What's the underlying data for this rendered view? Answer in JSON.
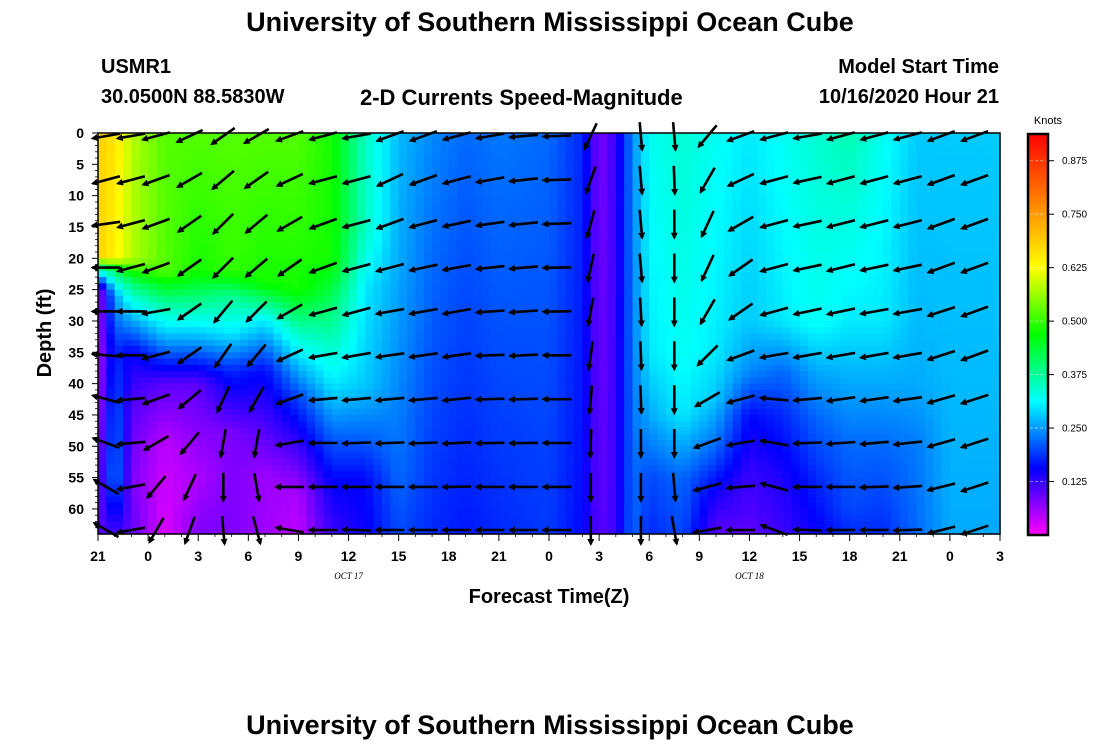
{
  "page": {
    "top_title": "University of Southern Mississippi Ocean Cube",
    "bottom_title": "University of Southern Mississippi Ocean Cube",
    "station_id": "USMR1",
    "station_coords": "30.0500N 88.5830W",
    "plot_title": "2-D Currents Speed-Magnitude",
    "model_start_label": "Model Start Time",
    "model_start_value": "10/16/2020 Hour 21"
  },
  "chart_data": {
    "type": "heatmap",
    "title": "2-D Currents Speed-Magnitude",
    "xlabel": "Forecast Time(Z)",
    "ylabel": "Depth (ft)",
    "x_tick_labels": [
      "21",
      "0",
      "3",
      "6",
      "9",
      "12",
      "15",
      "18",
      "21",
      "0",
      "3",
      "6",
      "9",
      "12",
      "15",
      "18",
      "21",
      "0",
      "3"
    ],
    "date_labels": [
      {
        "label": "OCT 17",
        "hour_index": 5
      },
      {
        "label": "OCT 18",
        "hour_index": 13
      }
    ],
    "ylim": [
      0,
      64
    ],
    "y_ticks": [
      0,
      5,
      10,
      15,
      20,
      25,
      30,
      35,
      40,
      45,
      50,
      55,
      60
    ],
    "colorbar": {
      "unit": "Knots",
      "min": 0,
      "max": 0.9375,
      "ticks": [
        0.125,
        0.25,
        0.375,
        0.5,
        0.625,
        0.75,
        0.875
      ],
      "tick_labels": [
        "0.125",
        "0.250",
        "0.375",
        "0.500",
        "0.625",
        "0.750",
        "0.875"
      ],
      "colors": [
        "#ff00ff",
        "#8000ff",
        "#0000ff",
        "#0080ff",
        "#00ffff",
        "#00ff80",
        "#00ff00",
        "#80ff00",
        "#ffff00",
        "#ffc000",
        "#ff8000",
        "#ff4000",
        "#ff0000"
      ]
    },
    "grid": false,
    "legend_position": "right",
    "vector_depths": [
      0,
      7,
      14,
      21,
      28,
      35,
      42,
      49,
      56,
      63
    ],
    "speed_profiles": [
      {
        "t": 0,
        "d": [
          0,
          0.68,
          20,
          0.68,
          21,
          0.42,
          25,
          0.05,
          45,
          0.05,
          64,
          0.1
        ]
      },
      {
        "t": 1,
        "d": [
          0,
          0.66,
          20,
          0.64,
          22,
          0.4,
          26,
          0.25,
          35,
          0.18,
          45,
          0.22,
          55,
          0.24,
          64,
          0.12
        ]
      },
      {
        "t": 2,
        "d": [
          0,
          0.58,
          20,
          0.58,
          24,
          0.4,
          27,
          0.32,
          35,
          0.15,
          45,
          0.1,
          55,
          0.08,
          64,
          0.1
        ]
      },
      {
        "t": 4,
        "d": [
          0,
          0.52,
          22,
          0.52,
          27,
          0.38,
          32,
          0.28,
          40,
          0.1,
          50,
          0.04,
          64,
          0.02
        ]
      },
      {
        "t": 6,
        "d": [
          0,
          0.52,
          22,
          0.48,
          28,
          0.36,
          33,
          0.26,
          40,
          0.1,
          55,
          0.05,
          64,
          0.08
        ]
      },
      {
        "t": 8,
        "d": [
          0,
          0.52,
          22,
          0.5,
          26,
          0.38,
          32,
          0.3,
          38,
          0.18,
          48,
          0.08,
          64,
          0.08
        ]
      },
      {
        "t": 10,
        "d": [
          0,
          0.52,
          24,
          0.48,
          30,
          0.3,
          38,
          0.16,
          45,
          0.12,
          55,
          0.06,
          64,
          0.06
        ]
      },
      {
        "t": 12,
        "d": [
          0,
          0.52,
          25,
          0.48,
          32,
          0.35,
          42,
          0.2,
          50,
          0.12,
          58,
          0.05,
          64,
          0.04
        ]
      },
      {
        "t": 14,
        "d": [
          0,
          0.48,
          20,
          0.48,
          28,
          0.4,
          40,
          0.3,
          48,
          0.22,
          55,
          0.16,
          64,
          0.12
        ]
      },
      {
        "t": 16,
        "d": [
          0,
          0.35,
          15,
          0.35,
          25,
          0.3,
          40,
          0.28,
          48,
          0.22,
          55,
          0.16,
          64,
          0.15
        ]
      },
      {
        "t": 18,
        "d": [
          0,
          0.27,
          20,
          0.26,
          40,
          0.24,
          55,
          0.22,
          64,
          0.2
        ]
      },
      {
        "t": 20,
        "d": [
          0,
          0.24,
          64,
          0.18
        ]
      },
      {
        "t": 22,
        "d": [
          0,
          0.22,
          64,
          0.17
        ]
      },
      {
        "t": 24,
        "d": [
          0,
          0.23,
          64,
          0.18
        ]
      },
      {
        "t": 27,
        "d": [
          0,
          0.22,
          64,
          0.19
        ]
      },
      {
        "t": 29,
        "d": [
          0,
          0.18,
          64,
          0.16
        ]
      },
      {
        "t": 30,
        "d": [
          0,
          0.08,
          64,
          0.1
        ]
      },
      {
        "t": 31,
        "d": [
          0,
          0.12,
          64,
          0.12
        ]
      },
      {
        "t": 32,
        "d": [
          0,
          0.24,
          64,
          0.22
        ]
      },
      {
        "t": 33,
        "d": [
          0,
          0.32,
          35,
          0.3,
          45,
          0.26,
          55,
          0.2,
          64,
          0.18
        ]
      },
      {
        "t": 35,
        "d": [
          0,
          0.34,
          35,
          0.32,
          45,
          0.3,
          55,
          0.22,
          64,
          0.2
        ]
      },
      {
        "t": 37,
        "d": [
          0,
          0.32,
          35,
          0.3,
          42,
          0.28,
          50,
          0.22,
          58,
          0.14,
          64,
          0.1
        ]
      },
      {
        "t": 39,
        "d": [
          0,
          0.3,
          30,
          0.28,
          38,
          0.24,
          45,
          0.16,
          55,
          0.12,
          64,
          0.1
        ]
      },
      {
        "t": 41,
        "d": [
          0,
          0.32,
          30,
          0.3,
          38,
          0.22,
          45,
          0.18,
          55,
          0.14,
          64,
          0.12
        ]
      },
      {
        "t": 43,
        "d": [
          0,
          0.34,
          30,
          0.32,
          38,
          0.26,
          45,
          0.22,
          55,
          0.18,
          64,
          0.15
        ]
      },
      {
        "t": 45,
        "d": [
          0,
          0.36,
          30,
          0.3,
          40,
          0.26,
          50,
          0.22,
          60,
          0.2,
          64,
          0.18
        ]
      },
      {
        "t": 47,
        "d": [
          0,
          0.32,
          30,
          0.3,
          40,
          0.26,
          50,
          0.22,
          64,
          0.18
        ]
      },
      {
        "t": 49,
        "d": [
          0,
          0.28,
          30,
          0.27,
          40,
          0.26,
          50,
          0.23,
          64,
          0.22
        ]
      },
      {
        "t": 51,
        "d": [
          0,
          0.28,
          40,
          0.27,
          64,
          0.26
        ]
      },
      {
        "t": 54,
        "d": [
          0,
          0.28,
          40,
          0.27,
          64,
          0.26
        ]
      }
    ],
    "vectors": [
      {
        "t": 0.5,
        "dirs": [
          190,
          195,
          188,
          180,
          180,
          175,
          165,
          160,
          150,
          150
        ]
      },
      {
        "t": 2,
        "dirs": [
          190,
          195,
          195,
          195,
          180,
          180,
          185,
          185,
          190,
          190
        ]
      },
      {
        "t": 3.5,
        "dirs": [
          195,
          200,
          200,
          200,
          190,
          195,
          200,
          210,
          230,
          240
        ]
      },
      {
        "t": 5.5,
        "dirs": [
          205,
          210,
          215,
          215,
          215,
          215,
          220,
          230,
          245,
          250
        ]
      },
      {
        "t": 7.5,
        "dirs": [
          215,
          220,
          225,
          225,
          230,
          235,
          245,
          260,
          270,
          275
        ]
      },
      {
        "t": 9.5,
        "dirs": [
          210,
          215,
          220,
          220,
          225,
          230,
          240,
          260,
          280,
          285
        ]
      },
      {
        "t": 11.5,
        "dirs": [
          200,
          205,
          210,
          215,
          210,
          205,
          200,
          190,
          180,
          170
        ]
      },
      {
        "t": 13.5,
        "dirs": [
          195,
          195,
          200,
          200,
          195,
          190,
          185,
          180,
          180,
          180
        ]
      },
      {
        "t": 15.5,
        "dirs": [
          190,
          195,
          195,
          195,
          195,
          190,
          185,
          182,
          180,
          178
        ]
      },
      {
        "t": 17.5,
        "dirs": [
          200,
          205,
          200,
          195,
          190,
          188,
          185,
          182,
          180,
          180
        ]
      },
      {
        "t": 19.5,
        "dirs": [
          200,
          200,
          195,
          192,
          190,
          188,
          185,
          182,
          180,
          180
        ]
      },
      {
        "t": 21.5,
        "dirs": [
          195,
          195,
          192,
          190,
          190,
          188,
          186,
          183,
          181,
          180
        ]
      },
      {
        "t": 23.5,
        "dirs": [
          190,
          190,
          188,
          186,
          184,
          182,
          182,
          181,
          180,
          180
        ]
      },
      {
        "t": 25.5,
        "dirs": [
          185,
          186,
          186,
          185,
          184,
          183,
          182,
          181,
          180,
          180
        ]
      },
      {
        "t": 27.5,
        "dirs": [
          182,
          182,
          182,
          181,
          181,
          180,
          180,
          180,
          180,
          180
        ]
      },
      {
        "t": 29.5,
        "dirs": [
          245,
          250,
          255,
          258,
          260,
          262,
          265,
          268,
          270,
          270
        ]
      },
      {
        "t": 32.5,
        "dirs": [
          275,
          275,
          275,
          275,
          273,
          272,
          272,
          270,
          270,
          270
        ]
      },
      {
        "t": 34.5,
        "dirs": [
          275,
          272,
          270,
          270,
          270,
          270,
          270,
          270,
          275,
          280
        ]
      },
      {
        "t": 36.5,
        "dirs": [
          230,
          240,
          245,
          245,
          240,
          225,
          210,
          200,
          195,
          190
        ]
      },
      {
        "t": 38.5,
        "dirs": [
          200,
          205,
          210,
          215,
          215,
          200,
          195,
          190,
          185,
          180
        ]
      },
      {
        "t": 40.5,
        "dirs": [
          195,
          195,
          195,
          195,
          195,
          190,
          175,
          170,
          165,
          160
        ]
      },
      {
        "t": 42.5,
        "dirs": [
          190,
          192,
          192,
          192,
          192,
          190,
          185,
          182,
          180,
          178
        ]
      },
      {
        "t": 44.5,
        "dirs": [
          195,
          195,
          194,
          194,
          192,
          190,
          188,
          184,
          180,
          180
        ]
      },
      {
        "t": 46.5,
        "dirs": [
          195,
          195,
          194,
          192,
          190,
          190,
          188,
          185,
          182,
          180
        ]
      },
      {
        "t": 48.5,
        "dirs": [
          195,
          195,
          194,
          192,
          190,
          190,
          188,
          186,
          184,
          182
        ]
      },
      {
        "t": 50.5,
        "dirs": [
          200,
          200,
          200,
          200,
          198,
          198,
          196,
          196,
          194,
          194
        ]
      },
      {
        "t": 52.5,
        "dirs": [
          200,
          200,
          200,
          200,
          200,
          200,
          198,
          198,
          198,
          198
        ]
      }
    ]
  }
}
